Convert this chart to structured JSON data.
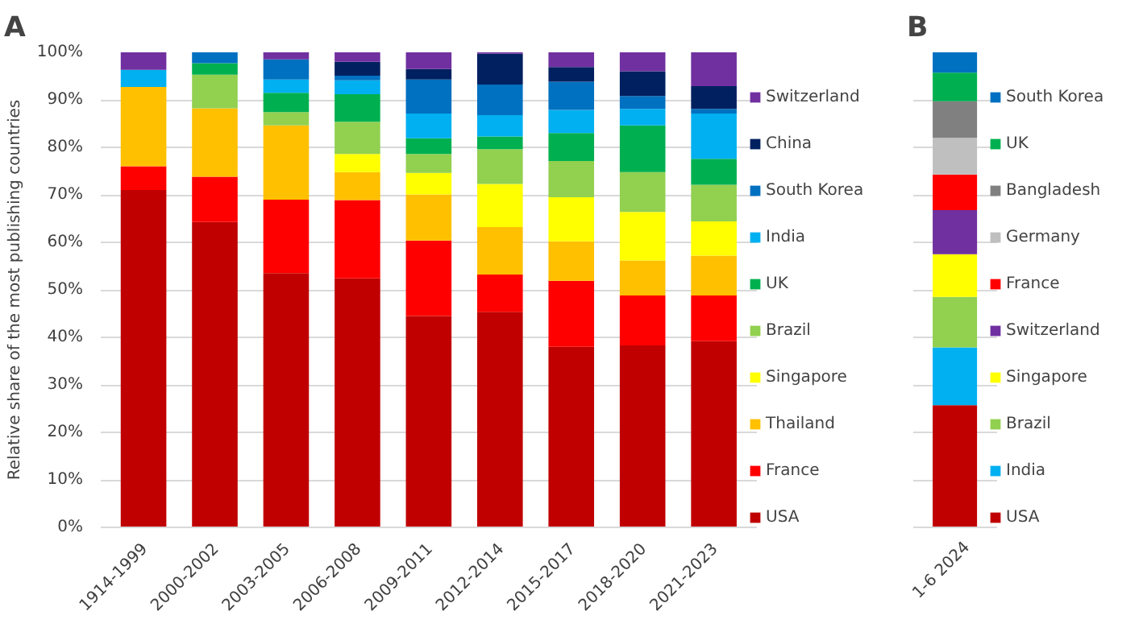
{
  "chart_data": [
    {
      "type": "bar",
      "stacked": true,
      "title": "A",
      "ylabel": "Relative share of the most publishing countries",
      "categories": [
        "1914-1999",
        "2000-2002",
        "2003-2005",
        "2006-2008",
        "2009-2011",
        "2012-2014",
        "2015-2017",
        "2018-2020",
        "2021-2023"
      ],
      "ylim": [
        0,
        100
      ],
      "yticks": [
        {
          "value": 0,
          "label": "0%"
        },
        {
          "value": 10,
          "label": "10%"
        },
        {
          "value": 20,
          "label": "20%"
        },
        {
          "value": 30,
          "label": "30%"
        },
        {
          "value": 40,
          "label": "40%"
        },
        {
          "value": 50,
          "label": "50%"
        },
        {
          "value": 60,
          "label": "60%"
        },
        {
          "value": 70,
          "label": "70%"
        },
        {
          "value": 80,
          "label": "80%"
        },
        {
          "value": 90,
          "label": "90%"
        },
        {
          "value": 100,
          "label": "100%"
        }
      ],
      "grid": "y",
      "legend": "right",
      "series": [
        {
          "name": "USA",
          "color": "#c00000",
          "values": [
            71,
            64.3,
            53.5,
            52.4,
            44.5,
            45.4,
            38.0,
            38.3,
            39.2
          ]
        },
        {
          "name": "France",
          "color": "#ff0000",
          "values": [
            5,
            9.5,
            15.5,
            16.5,
            15.9,
            7.8,
            13.9,
            10.5,
            9.6
          ]
        },
        {
          "name": "Thailand",
          "color": "#ffc000",
          "values": [
            16.7,
            14.4,
            15.6,
            5.9,
            9.7,
            10,
            8.3,
            7.4,
            8.4
          ]
        },
        {
          "name": "Singapore",
          "color": "#ffff00",
          "values": [
            null,
            null,
            null,
            3.8,
            4.5,
            9.1,
            9.3,
            10.2,
            7.2
          ]
        },
        {
          "name": "Brazil",
          "color": "#92d050",
          "values": [
            null,
            7.1,
            2.8,
            6.8,
            4.0,
            7.3,
            7.6,
            8.4,
            7.7
          ]
        },
        {
          "name": "UK",
          "color": "#00b050",
          "values": [
            null,
            2.4,
            4.1,
            5.8,
            3.3,
            2.7,
            5.9,
            9.8,
            5.5
          ]
        },
        {
          "name": "India",
          "color": "#00b0f0",
          "values": [
            3.6,
            null,
            2.8,
            2.9,
            5.2,
            4.5,
            4.9,
            3.5,
            9.5
          ]
        },
        {
          "name": "South Korea",
          "color": "#0070c0",
          "values": [
            null,
            2.3,
            4.2,
            1.0,
            7.2,
            6.4,
            5.9,
            2.7,
            1.0
          ]
        },
        {
          "name": "China",
          "color": "#002060",
          "values": [
            null,
            null,
            null,
            2.9,
            2.2,
            6.5,
            3.1,
            5.2,
            4.8
          ]
        },
        {
          "name": "Switzerland",
          "color": "#7030a0",
          "values": [
            3.7,
            null,
            1.5,
            2.0,
            3.5,
            0.3,
            3.1,
            4.0,
            7.1
          ]
        }
      ]
    },
    {
      "type": "bar",
      "stacked": true,
      "title": "B",
      "categories": [
        "1-6 2024"
      ],
      "ylim": [
        0,
        100
      ],
      "yticks": [
        0,
        10,
        20,
        30,
        40,
        50,
        60,
        70,
        80,
        90,
        100
      ],
      "grid": "y",
      "legend": "right",
      "tick_labels": "x",
      "series": [
        {
          "name": "USA",
          "color": "#c00000",
          "values": [
            25.7
          ]
        },
        {
          "name": "India",
          "color": "#00b0f0",
          "values": [
            12.2
          ]
        },
        {
          "name": "Brazil",
          "color": "#92d050",
          "values": [
            10.6
          ]
        },
        {
          "name": "Singapore",
          "color": "#ffff00",
          "values": [
            9.0
          ]
        },
        {
          "name": "Switzerland",
          "color": "#7030a0",
          "values": [
            9.3
          ]
        },
        {
          "name": "France",
          "color": "#ff0000",
          "values": [
            7.5
          ]
        },
        {
          "name": "Germany",
          "color": "#bfbfbf",
          "values": [
            7.7
          ]
        },
        {
          "name": "Bangladesh",
          "color": "#808080",
          "values": [
            7.7
          ]
        },
        {
          "name": "UK",
          "color": "#00b050",
          "values": [
            6.0
          ]
        },
        {
          "name": "South Korea",
          "color": "#0070c0",
          "values": [
            4.3
          ]
        }
      ]
    }
  ]
}
